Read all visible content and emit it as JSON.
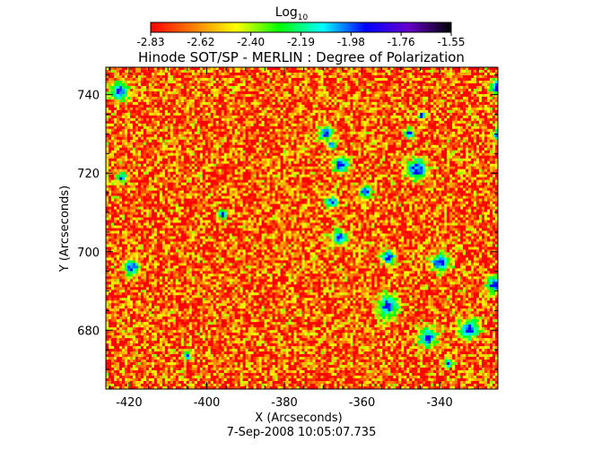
{
  "chart_data": {
    "type": "heatmap",
    "title": "Hinode SOT/SP - MERLIN : Degree of Polarization",
    "subtitle": "7-Sep-2008 10:05:07.735",
    "xlabel": "X (Arcseconds)",
    "ylabel": "Y (Arcseconds)",
    "xlim": [
      -426,
      -325
    ],
    "ylim": [
      665,
      747
    ],
    "x_ticks": [
      -420,
      -400,
      -380,
      -360,
      -340
    ],
    "y_ticks": [
      680,
      700,
      720,
      740
    ],
    "grid": false,
    "colorbar": {
      "label": "Log",
      "label_subscript": "10",
      "range": [
        -2.83,
        -1.55
      ],
      "ticks": [
        "-2.83",
        "-2.62",
        "-2.40",
        "-2.19",
        "-1.98",
        "-1.76",
        "-1.55"
      ],
      "colors": [
        "#ff0000",
        "#ff8000",
        "#ffff00",
        "#00ff00",
        "#00ffff",
        "#0000ff",
        "#6600cc",
        "#000000"
      ],
      "placement": "top"
    },
    "field_summary": {
      "dominant_level": -2.7,
      "typical_range": [
        -2.83,
        -2.3
      ],
      "sparse_features_level": [
        -2.2,
        -1.9
      ]
    }
  }
}
